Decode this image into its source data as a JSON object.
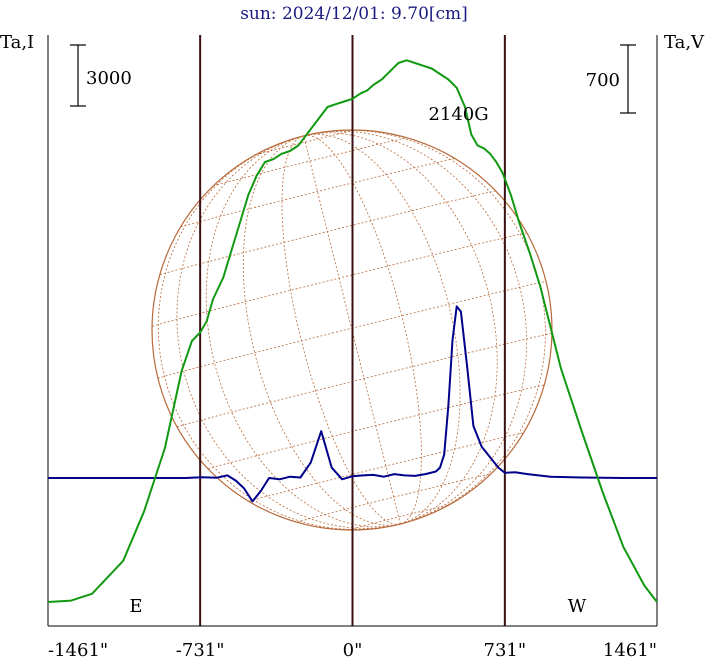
{
  "chart_data": {
    "type": "line",
    "title": "sun: 2024/12/01: 9.70[cm]",
    "left_axis_label": "Ta,I",
    "right_axis_label": "Ta,V",
    "left_scale_bar": "3000",
    "right_scale_bar": "700",
    "limb_labels": {
      "east": "E",
      "west": "W"
    },
    "xlim": [
      -1461,
      1461
    ],
    "x_ticks": [
      {
        "value": -1461,
        "label": "-1461\""
      },
      {
        "value": -731,
        "label": "-731\""
      },
      {
        "value": 0,
        "label": "0\""
      },
      {
        "value": 731,
        "label": "731\""
      },
      {
        "value": 1461,
        "label": "1461\""
      }
    ],
    "vertical_markers": [
      -731,
      0,
      731
    ],
    "annotations": [
      {
        "text": "2140G",
        "x": 480
      }
    ],
    "colors": {
      "background": "#ffffff",
      "axes": "#000000",
      "markers": "#3a1010",
      "sun_disk": "#b86a3a",
      "series_I": "#00008b",
      "series_V": "#119911",
      "title": "#1a1a80"
    },
    "series": [
      {
        "key": "I",
        "color": "#00008b",
        "x": [
          -1461,
          -1200,
          -1000,
          -800,
          -750,
          -720,
          -650,
          -600,
          -560,
          -520,
          -480,
          -440,
          -400,
          -350,
          -300,
          -250,
          -200,
          -150,
          -100,
          -50,
          0,
          50,
          100,
          150,
          200,
          250,
          300,
          350,
          400,
          420,
          440,
          460,
          480,
          500,
          520,
          550,
          580,
          620,
          660,
          700,
          731,
          780,
          840,
          950,
          1100,
          1300,
          1461
        ],
        "y": [
          0,
          0,
          0,
          0,
          0.02,
          0.03,
          0.01,
          0.1,
          -0.1,
          -0.4,
          -0.9,
          -0.5,
          0,
          -0.05,
          0.05,
          0.02,
          0.6,
          1.8,
          0.4,
          -0.05,
          0.07,
          0.1,
          0.12,
          0.05,
          0.15,
          0.1,
          0.08,
          0.15,
          0.25,
          0.4,
          0.9,
          2.8,
          5.3,
          6.6,
          6.4,
          4.3,
          2.0,
          1.2,
          0.8,
          0.4,
          0.2,
          0.22,
          0.15,
          0.05,
          0.02,
          0,
          0
        ]
      },
      {
        "key": "V",
        "color": "#119911",
        "x": [
          -1461,
          -1350,
          -1250,
          -1100,
          -1000,
          -900,
          -820,
          -770,
          -731,
          -700,
          -670,
          -620,
          -580,
          -540,
          -500,
          -460,
          -420,
          -380,
          -340,
          -300,
          -260,
          -230,
          -200,
          -160,
          -120,
          -80,
          -40,
          0,
          40,
          70,
          100,
          140,
          180,
          220,
          260,
          300,
          340,
          380,
          420,
          460,
          500,
          540,
          570,
          600,
          630,
          660,
          690,
          720,
          760,
          800,
          850,
          900,
          950,
          1000,
          1100,
          1200,
          1300,
          1400,
          1461
        ],
        "y": [
          0,
          0.05,
          0.3,
          1.5,
          3.3,
          5.6,
          8.4,
          9.5,
          9.8,
          10.2,
          11.0,
          11.8,
          12.8,
          13.8,
          14.8,
          15.5,
          16.0,
          16.1,
          16.3,
          16.4,
          16.6,
          16.9,
          17.2,
          17.6,
          18.0,
          18.1,
          18.2,
          18.3,
          18.5,
          18.6,
          18.8,
          19.0,
          19.3,
          19.6,
          19.7,
          19.6,
          19.5,
          19.4,
          19.2,
          19.0,
          18.7,
          18.0,
          17.0,
          16.6,
          16.5,
          16.3,
          16.0,
          15.6,
          14.8,
          13.8,
          12.7,
          11.5,
          10.0,
          8.5,
          6.2,
          4.0,
          2.0,
          0.6,
          0
        ]
      }
    ]
  }
}
